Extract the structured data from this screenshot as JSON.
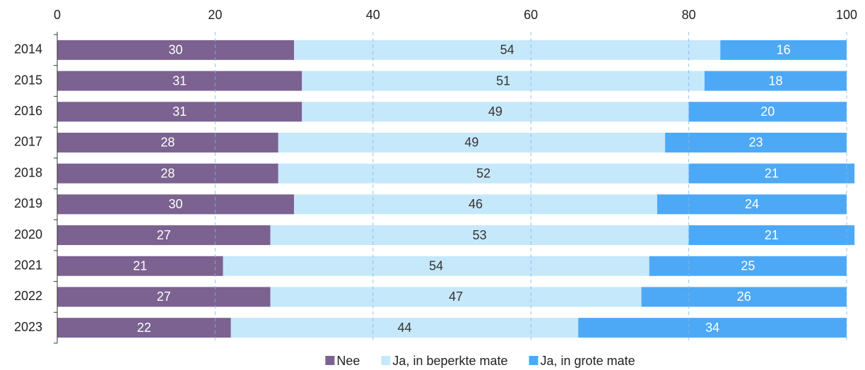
{
  "chart_data": {
    "type": "stacked-bar-horizontal",
    "categories": [
      "2014",
      "2015",
      "2016",
      "2017",
      "2018",
      "2019",
      "2020",
      "2021",
      "2022",
      "2023"
    ],
    "series": [
      {
        "name": "Nee",
        "color": "#7b6290",
        "values": [
          30,
          31,
          31,
          28,
          28,
          30,
          27,
          21,
          27,
          22
        ]
      },
      {
        "name": "Ja, in beperkte mate",
        "color": "#c6e8fb",
        "values": [
          54,
          51,
          49,
          49,
          52,
          46,
          53,
          54,
          47,
          44
        ]
      },
      {
        "name": "Ja, in grote mate",
        "color": "#4da9f5",
        "values": [
          16,
          18,
          20,
          23,
          21,
          24,
          21,
          25,
          26,
          34
        ]
      }
    ],
    "xlim": [
      0,
      100
    ],
    "xticks": [
      0,
      20,
      40,
      60,
      80,
      100
    ],
    "grid": true,
    "legend": "bottom"
  }
}
